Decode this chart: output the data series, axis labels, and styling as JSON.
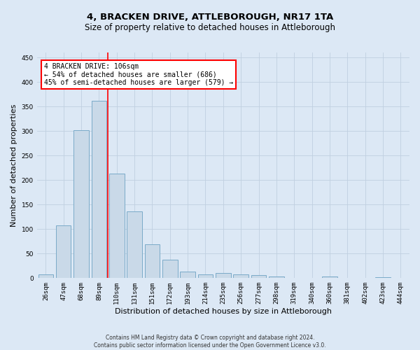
{
  "title": "4, BRACKEN DRIVE, ATTLEBOROUGH, NR17 1TA",
  "subtitle": "Size of property relative to detached houses in Attleborough",
  "xlabel": "Distribution of detached houses by size in Attleborough",
  "ylabel": "Number of detached properties",
  "footer_line1": "Contains HM Land Registry data © Crown copyright and database right 2024.",
  "footer_line2": "Contains public sector information licensed under the Open Government Licence v3.0.",
  "bins": [
    "26sqm",
    "47sqm",
    "68sqm",
    "89sqm",
    "110sqm",
    "131sqm",
    "151sqm",
    "172sqm",
    "193sqm",
    "214sqm",
    "235sqm",
    "256sqm",
    "277sqm",
    "298sqm",
    "319sqm",
    "340sqm",
    "360sqm",
    "381sqm",
    "402sqm",
    "423sqm",
    "444sqm"
  ],
  "bar_heights": [
    8,
    108,
    301,
    362,
    213,
    136,
    69,
    38,
    13,
    7,
    10,
    8,
    6,
    3,
    0,
    0,
    3,
    0,
    0,
    2,
    0
  ],
  "bar_color": "#c9d9e8",
  "bar_edge_color": "#7aaac8",
  "vline_x_index": 4,
  "vline_color": "red",
  "annotation_text": "4 BRACKEN DRIVE: 106sqm\n← 54% of detached houses are smaller (686)\n45% of semi-detached houses are larger (579) →",
  "annotation_box_color": "white",
  "annotation_box_edge_color": "red",
  "ylim": [
    0,
    460
  ],
  "yticks": [
    0,
    50,
    100,
    150,
    200,
    250,
    300,
    350,
    400,
    450
  ],
  "background_color": "#dce8f5",
  "grid_color": "#c0cfe0",
  "title_fontsize": 9.5,
  "subtitle_fontsize": 8.5,
  "tick_fontsize": 6.5,
  "ylabel_fontsize": 8,
  "xlabel_fontsize": 8,
  "annotation_fontsize": 7,
  "footer_fontsize": 5.5
}
